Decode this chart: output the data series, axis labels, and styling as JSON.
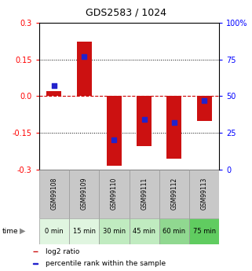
{
  "title": "GDS2583 / 1024",
  "samples": [
    "GSM99108",
    "GSM99109",
    "GSM99110",
    "GSM99111",
    "GSM99112",
    "GSM99113"
  ],
  "time_labels": [
    "0 min",
    "15 min",
    "30 min",
    "45 min",
    "60 min",
    "75 min"
  ],
  "time_colors": [
    "#e0f5e0",
    "#e0f5e0",
    "#c0ebc0",
    "#c0ebc0",
    "#90d890",
    "#60cc60"
  ],
  "log2_values": [
    0.022,
    0.225,
    -0.285,
    -0.205,
    -0.255,
    -0.1
  ],
  "percentile_values": [
    57,
    77,
    20,
    34,
    32,
    47
  ],
  "ylim": [
    -0.3,
    0.3
  ],
  "yticks_left": [
    -0.3,
    -0.15,
    0.0,
    0.15,
    0.3
  ],
  "yticks_right": [
    0,
    25,
    50,
    75,
    100
  ],
  "bar_color": "#cc1111",
  "dot_color": "#2222cc",
  "zero_line_color": "#cc0000",
  "title_fontsize": 9,
  "tick_fontsize": 7,
  "sample_fontsize": 5.5,
  "time_fontsize": 6,
  "legend_fontsize": 6.5
}
